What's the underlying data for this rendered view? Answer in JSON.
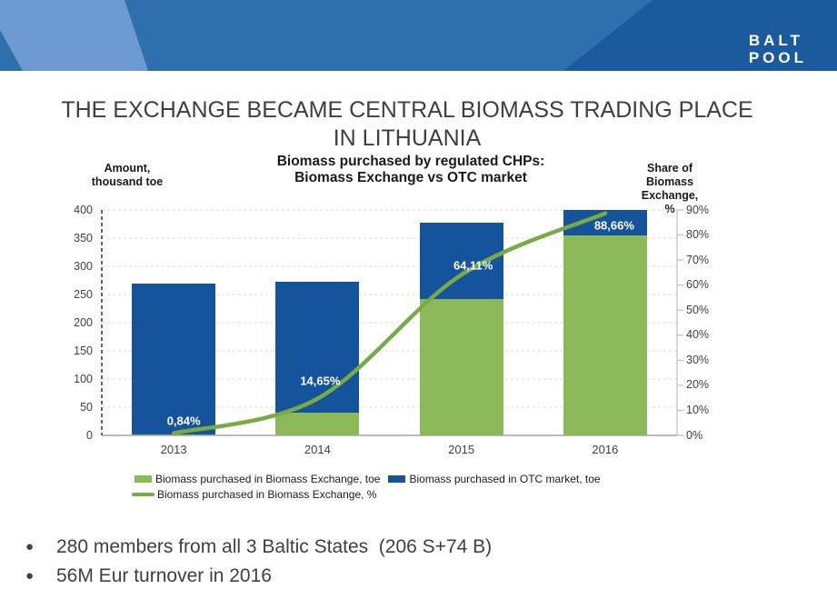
{
  "header": {
    "logo_line1": "BALT",
    "logo_line2": "POOL",
    "colors": {
      "band": "#2E6FAE",
      "navy": "#1B5B9D",
      "light": "#6D9BD1"
    }
  },
  "slide": {
    "title_lines": [
      "THE EXCHANGE BECAME CENTRAL BIOMASS TRADING PLACE",
      "IN LITHUANIA"
    ]
  },
  "bullets": [
    "280 members from all 3 Baltic States  (206 S+74 B)",
    "56M Eur turnover in 2016"
  ],
  "chart_data": {
    "type": "bar",
    "subtype": "stacked-bars-with-percent-line",
    "title_lines": [
      "Biomass purchased by regulated CHPs:",
      "Biomass Exchange vs OTC market"
    ],
    "categories": [
      "2013",
      "2014",
      "2015",
      "2016"
    ],
    "series": [
      {
        "name": "Biomass purchased in Biomass Exchange, toe",
        "type": "bar",
        "stack": true,
        "color": "#8CBA58",
        "values": [
          2,
          40,
          242,
          355
        ]
      },
      {
        "name": "Biomass purchased in OTC market, toe",
        "type": "bar",
        "stack": true,
        "color": "#15539D",
        "values": [
          268,
          232,
          136,
          45
        ]
      },
      {
        "name": "Biomass purchased in Biomass Exchange, %",
        "type": "line",
        "axis": "right",
        "color": "#78AB44",
        "values": [
          0.84,
          14.65,
          64.11,
          88.66
        ],
        "point_labels": [
          "0,84%",
          "14,65%",
          "64,11%",
          "88,66%"
        ],
        "label_offsets": [
          {
            "dx": 11,
            "dy": -14
          },
          {
            "dx": 3,
            "dy": -20
          },
          {
            "dx": 13,
            "dy": -10
          },
          {
            "dx": 10,
            "dy": 13
          }
        ]
      }
    ],
    "left_axis": {
      "title_lines": [
        "Amount,",
        "thousand toe"
      ],
      "min": 0,
      "max": 400,
      "step": 50
    },
    "right_axis": {
      "title_lines": [
        "Share of Biomass",
        "Exchange,",
        "%"
      ],
      "min": 0,
      "max": 90,
      "step": 10,
      "suffix": "%"
    },
    "legend_position": "bottom",
    "grid": true,
    "colors": {
      "gridline": "#D9D9D9",
      "bottom_axis": "#A6A6A6",
      "right_axis": "#BFBFBF",
      "left_axis_dashed": "#404040"
    }
  }
}
